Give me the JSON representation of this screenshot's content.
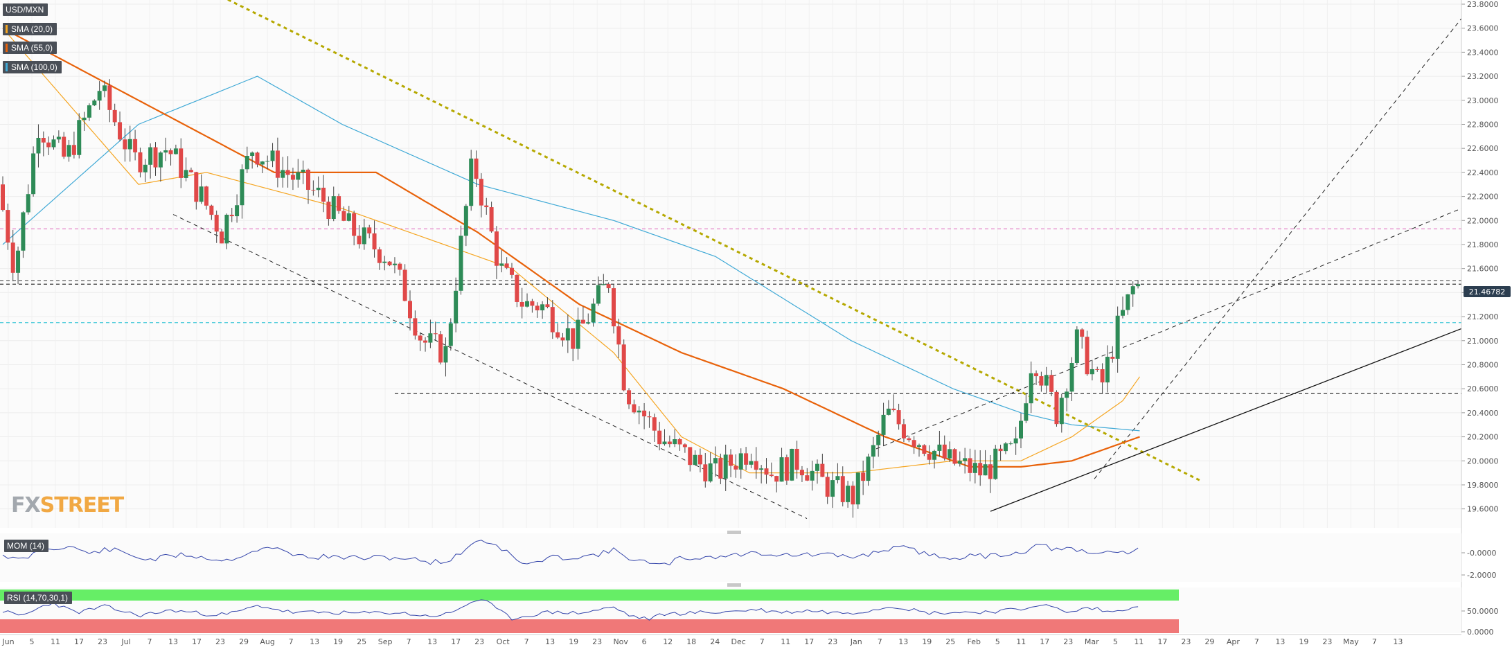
{
  "instrument": "USD/MXN",
  "indicators": [
    {
      "label": "SMA (20,0)",
      "color": "#f5a623"
    },
    {
      "label": "SMA (55,0)",
      "color": "#e8620a"
    },
    {
      "label": "SMA (100,0)",
      "color": "#3fa9d6"
    }
  ],
  "logo": {
    "part1": "FX",
    "part2": "STREET"
  },
  "chart_data": {
    "type": "candlestick",
    "title": "USD/MXN",
    "ylim": [
      19.5,
      23.8
    ],
    "y_ticks": [
      "23.8000",
      "23.6000",
      "23.4000",
      "23.2000",
      "23.0000",
      "22.8000",
      "22.6000",
      "22.4000",
      "22.2000",
      "22.0000",
      "21.8000",
      "21.6000",
      "21.4000",
      "21.2000",
      "21.0000",
      "20.8000",
      "20.6000",
      "20.4000",
      "20.2000",
      "20.0000",
      "19.8000",
      "19.6000"
    ],
    "x_ticks": [
      "Jun",
      "5",
      "11",
      "17",
      "23",
      "Jul",
      "7",
      "13",
      "17",
      "23",
      "29",
      "Aug",
      "7",
      "13",
      "19",
      "25",
      "Sep",
      "7",
      "13",
      "17",
      "23",
      "Oct",
      "7",
      "13",
      "19",
      "23",
      "Nov",
      "6",
      "12",
      "18",
      "24",
      "Dec",
      "7",
      "11",
      "17",
      "23",
      "Jan",
      "7",
      "13",
      "19",
      "25",
      "Feb",
      "5",
      "11",
      "17",
      "23",
      "Mar",
      "5",
      "11",
      "17",
      "23",
      "29",
      "Apr",
      "7",
      "13",
      "19",
      "23",
      "May",
      "7",
      "13"
    ],
    "last_price": "21.46782",
    "approx_path": {
      "x_day": [
        0,
        5,
        12,
        20,
        30,
        40,
        50,
        60,
        66,
        75,
        85,
        95,
        105,
        115,
        120,
        125,
        132,
        140,
        148,
        155,
        160,
        170,
        180,
        185,
        195,
        205,
        212,
        222,
        228,
        236,
        244,
        252,
        257,
        262,
        270,
        280,
        290,
        300,
        305,
        312,
        318,
        325,
        330,
        335
      ],
      "close": [
        22.3,
        21.6,
        22.8,
        22.5,
        23.1,
        22.5,
        22.6,
        22.2,
        21.9,
        22.6,
        22.4,
        22.2,
        21.9,
        21.7,
        21.4,
        21.0,
        20.9,
        22.5,
        21.6,
        21.3,
        21.3,
        21.0,
        21.5,
        20.6,
        20.2,
        20.0,
        19.9,
        20.1,
        19.9,
        20.0,
        19.8,
        19.7,
        20.0,
        20.4,
        20.2,
        20.0,
        19.9,
        20.1,
        20.9,
        20.4,
        21.0,
        20.6,
        21.1,
        21.47
      ]
    },
    "sma_20_approx": {
      "x_day": [
        0,
        40,
        60,
        100,
        130,
        150,
        180,
        200,
        220,
        250,
        280,
        300,
        315,
        330,
        335
      ],
      "y": [
        23.6,
        22.3,
        22.4,
        22.1,
        21.8,
        21.6,
        20.9,
        20.2,
        19.9,
        19.9,
        20.0,
        20.0,
        20.2,
        20.5,
        20.7
      ]
    },
    "sma_55_approx": {
      "x_day": [
        0,
        40,
        80,
        110,
        140,
        170,
        200,
        230,
        260,
        285,
        300,
        315,
        335
      ],
      "y": [
        23.6,
        23.0,
        22.4,
        22.4,
        21.9,
        21.3,
        20.9,
        20.6,
        20.2,
        19.95,
        19.95,
        20.0,
        20.2
      ]
    },
    "sma_100_approx": {
      "x_day": [
        0,
        40,
        75,
        100,
        140,
        180,
        210,
        250,
        280,
        300,
        315,
        335
      ],
      "y": [
        21.8,
        22.8,
        23.2,
        22.8,
        22.3,
        22.0,
        21.7,
        21.0,
        20.6,
        20.4,
        20.3,
        20.25
      ]
    },
    "horizontal_levels": [
      {
        "y": 21.93,
        "style": "dashed",
        "color": "#e070c0"
      },
      {
        "y": 21.47,
        "style": "dashed",
        "color": "#333333"
      },
      {
        "y": 21.15,
        "style": "dashed",
        "color": "#40c8d8"
      },
      {
        "y": 20.56,
        "style": "dashed",
        "color": "#333333"
      }
    ],
    "subpanels": [
      {
        "label": "MOM (14)",
        "y_ticks": [
          "-0.0000",
          "-2.0000"
        ]
      },
      {
        "label": "RSI (14,70,30,1)",
        "y_ticks": [
          "50.0000",
          "0.0000"
        ]
      }
    ]
  }
}
